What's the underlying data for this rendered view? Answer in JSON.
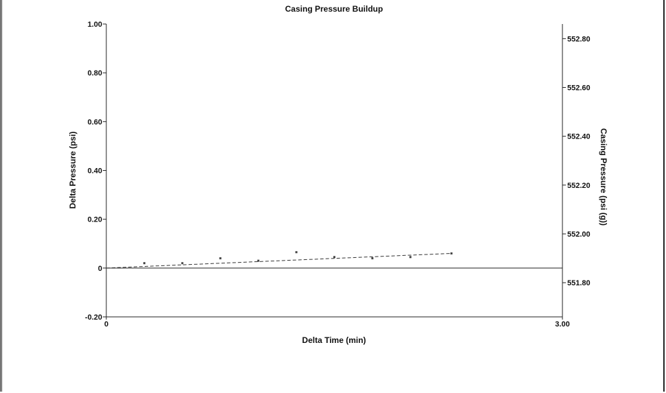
{
  "chart_data": {
    "type": "scatter",
    "title": "Casing Pressure Buildup",
    "xlabel": "Delta Time (min)",
    "ylabel": "Delta Pressure (psi)",
    "y2label": "Casing Pressure (psi (g))",
    "xlim": [
      0,
      3.0
    ],
    "ylim": [
      -0.2,
      1.0
    ],
    "y2lim": [
      551.66,
      552.86
    ],
    "x_ticks": [
      {
        "value": 0,
        "label": "0"
      },
      {
        "value": 3.0,
        "label": "3.00"
      }
    ],
    "y_ticks": [
      {
        "value": 1.0,
        "label": "1.00"
      },
      {
        "value": 0.8,
        "label": "0.80"
      },
      {
        "value": 0.6,
        "label": "0.60"
      },
      {
        "value": 0.4,
        "label": "0.40"
      },
      {
        "value": 0.2,
        "label": "0.20"
      },
      {
        "value": 0,
        "label": "0"
      },
      {
        "value": -0.2,
        "label": "-0.20"
      }
    ],
    "y2_ticks": [
      {
        "value": 552.8,
        "label": "552.80"
      },
      {
        "value": 552.6,
        "label": "552.60"
      },
      {
        "value": 552.4,
        "label": "552.40"
      },
      {
        "value": 552.2,
        "label": "552.20"
      },
      {
        "value": 552.0,
        "label": "552.00"
      },
      {
        "value": 551.8,
        "label": "551.80"
      }
    ],
    "series": [
      {
        "points": [
          {
            "x": 0.25,
            "y": 0.02
          },
          {
            "x": 0.5,
            "y": 0.02
          },
          {
            "x": 0.75,
            "y": 0.04
          },
          {
            "x": 1.0,
            "y": 0.03
          },
          {
            "x": 1.25,
            "y": 0.065
          },
          {
            "x": 1.5,
            "y": 0.045
          },
          {
            "x": 1.75,
            "y": 0.04
          },
          {
            "x": 2.0,
            "y": 0.045
          },
          {
            "x": 2.27,
            "y": 0.06
          }
        ]
      }
    ],
    "trendline": {
      "style": "dashed",
      "from": {
        "x": 0,
        "y": 0
      },
      "to": {
        "x": 2.27,
        "y": 0.06
      }
    },
    "zero_line": true,
    "grid": false
  }
}
